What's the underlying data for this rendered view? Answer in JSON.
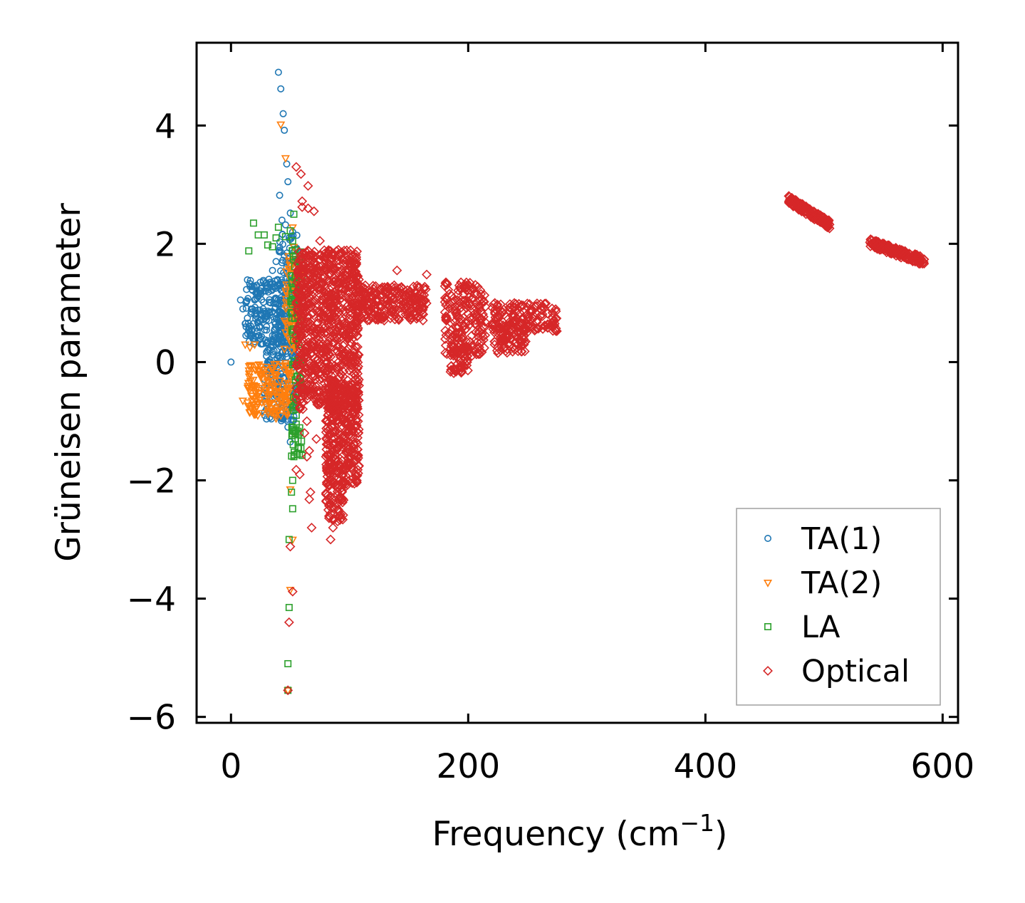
{
  "chart_data": {
    "type": "scatter",
    "title": "",
    "xlabel": "Frequency (cm",
    "xlabel_sup": "−1",
    "xlabel_close": ")",
    "ylabel": "Grüneisen parameter",
    "xlim": [
      -29,
      613
    ],
    "ylim": [
      -6.1,
      5.4
    ],
    "xticks": [
      0,
      200,
      400,
      600
    ],
    "xtick_labels": [
      "0",
      "200",
      "400",
      "600"
    ],
    "yticks": [
      -6,
      -4,
      -2,
      0,
      2,
      4
    ],
    "ytick_labels": [
      "−6",
      "−4",
      "−2",
      "0",
      "2",
      "4"
    ],
    "grid": false,
    "legend_position": "bottom-right",
    "series": [
      {
        "name": "TA(1)",
        "marker": "circle",
        "color": "#1f77b4",
        "points": [
          [
            0,
            0
          ],
          [
            40,
            4.9
          ],
          [
            42,
            4.62
          ],
          [
            44,
            4.2
          ],
          [
            45,
            3.92
          ],
          [
            47,
            3.35
          ],
          [
            48,
            3.05
          ],
          [
            41,
            2.82
          ],
          [
            50,
            2.52
          ],
          [
            43,
            2.4
          ],
          [
            46,
            2.32
          ],
          [
            38,
            1.7
          ],
          [
            35,
            1.55
          ],
          [
            32,
            1.4
          ],
          [
            30,
            1.3
          ],
          [
            28,
            1.2
          ],
          [
            25,
            1.15
          ],
          [
            22,
            1.08
          ],
          [
            20,
            1.05
          ],
          [
            8,
            1.05
          ],
          [
            10,
            0.9
          ],
          [
            12,
            0.65
          ],
          [
            15,
            0.6
          ],
          [
            18,
            0.55
          ],
          [
            20,
            0.8
          ],
          [
            24,
            0.7
          ],
          [
            27,
            0.9
          ],
          [
            30,
            0.6
          ],
          [
            33,
            0.2
          ],
          [
            35,
            0.45
          ],
          [
            38,
            0.3
          ],
          [
            40,
            0.1
          ],
          [
            42,
            -0.2
          ],
          [
            44,
            -0.5
          ],
          [
            46,
            -0.8
          ],
          [
            48,
            -1.1
          ],
          [
            50,
            -1.35
          ],
          [
            45,
            1.8
          ],
          [
            47,
            1.6
          ],
          [
            49,
            2.1
          ],
          [
            51,
            1.3
          ],
          [
            52,
            2.2
          ],
          [
            36,
            1.0
          ],
          [
            39,
            0.8
          ],
          [
            43,
            0.5
          ]
        ],
        "clusters": [
          {
            "x_range": [
              12,
              55
            ],
            "y_range": [
              0.3,
              1.4
            ],
            "count": 240
          },
          {
            "x_range": [
              28,
              55
            ],
            "y_range": [
              -1.0,
              0.5
            ],
            "count": 180
          },
          {
            "x_range": [
              40,
              56
            ],
            "y_range": [
              0.8,
              2.2
            ],
            "count": 60
          }
        ]
      },
      {
        "name": "TA(2)",
        "marker": "triangle-down",
        "color": "#ff7f0e",
        "points": [
          [
            42,
            4.02
          ],
          [
            46,
            3.45
          ],
          [
            52,
            2.28
          ],
          [
            53,
            1.95
          ],
          [
            10,
            -0.65
          ],
          [
            14,
            -0.68
          ],
          [
            18,
            -0.72
          ],
          [
            22,
            -0.75
          ],
          [
            26,
            -0.68
          ],
          [
            30,
            -0.75
          ],
          [
            34,
            -0.85
          ],
          [
            38,
            -0.95
          ],
          [
            42,
            -0.9
          ],
          [
            20,
            0.3
          ],
          [
            16,
            0.25
          ],
          [
            12,
            0.3
          ],
          [
            50,
            -2.15
          ],
          [
            52,
            -3.0
          ],
          [
            50,
            -3.85
          ],
          [
            48,
            -5.55
          ],
          [
            54,
            -1.2
          ],
          [
            52,
            0.7
          ],
          [
            55,
            0.4
          ]
        ],
        "clusters": [
          {
            "x_range": [
              14,
              52
            ],
            "y_range": [
              -0.9,
              0.0
            ],
            "count": 170
          },
          {
            "x_range": [
              45,
              58
            ],
            "y_range": [
              0.2,
              1.8
            ],
            "count": 90
          }
        ]
      },
      {
        "name": "LA",
        "marker": "square",
        "color": "#2ca02c",
        "points": [
          [
            19,
            2.35
          ],
          [
            23,
            2.15
          ],
          [
            28,
            2.15
          ],
          [
            31,
            1.98
          ],
          [
            15,
            1.88
          ],
          [
            35,
            1.95
          ],
          [
            38,
            2.1
          ],
          [
            40,
            2.28
          ],
          [
            46,
            2.12
          ],
          [
            50,
            2.22
          ],
          [
            53,
            2.5
          ],
          [
            52,
            2.05
          ],
          [
            54,
            1.9
          ],
          [
            56,
            1.5
          ],
          [
            57,
            1.2
          ],
          [
            56,
            0.95
          ],
          [
            58,
            0.6
          ],
          [
            57,
            0.3
          ],
          [
            58,
            -0.4
          ],
          [
            55,
            -0.9
          ],
          [
            54,
            -1.3
          ],
          [
            53,
            -1.6
          ],
          [
            52,
            -2.0
          ],
          [
            51,
            -2.2
          ],
          [
            52,
            -2.48
          ],
          [
            49,
            -3.0
          ],
          [
            49,
            -4.15
          ],
          [
            48,
            -5.1
          ],
          [
            48,
            -5.55
          ],
          [
            55,
            -1.05
          ],
          [
            56,
            1.7
          ]
        ],
        "clusters": [
          {
            "x_range": [
              50,
              60
            ],
            "y_range": [
              -1.6,
              1.9
            ],
            "count": 90
          }
        ]
      },
      {
        "name": "Optical",
        "marker": "diamond",
        "color": "#d62728",
        "points": [
          [
            55,
            3.3
          ],
          [
            59,
            3.18
          ],
          [
            65,
            2.98
          ],
          [
            60,
            2.62
          ],
          [
            65,
            2.6
          ],
          [
            70,
            2.55
          ],
          [
            60,
            2.72
          ],
          [
            75,
            2.05
          ],
          [
            82,
            1.85
          ],
          [
            140,
            1.55
          ],
          [
            165,
            1.48
          ],
          [
            60,
            -0.7
          ],
          [
            62,
            -1.2
          ],
          [
            64,
            -1.6
          ],
          [
            67,
            -2.2
          ],
          [
            66,
            -2.32
          ],
          [
            68,
            -2.8
          ],
          [
            50,
            -3.12
          ],
          [
            52,
            -3.88
          ],
          [
            49,
            -4.4
          ],
          [
            48,
            -5.55
          ],
          [
            84,
            -3.0
          ],
          [
            82,
            -2.5
          ],
          [
            86,
            -2.8
          ],
          [
            64,
            -1.0
          ],
          [
            66,
            -1.5
          ],
          [
            72,
            -1.3
          ],
          [
            80,
            -1.6
          ],
          [
            55,
            -1.82
          ],
          [
            58,
            -1.9
          ]
        ],
        "clusters": [
          {
            "x_range": [
              55,
              108
            ],
            "y_range": [
              -0.8,
              1.9
            ],
            "count": 900
          },
          {
            "x_range": [
              80,
              108
            ],
            "y_range": [
              -2.1,
              -0.4
            ],
            "count": 350
          },
          {
            "x_range": [
              80,
              95
            ],
            "y_range": [
              -2.7,
              -2.0
            ],
            "count": 60
          },
          {
            "x_range": [
              105,
              165
            ],
            "y_range": [
              0.7,
              1.3
            ],
            "count": 260
          },
          {
            "x_range": [
              180,
              215
            ],
            "y_range": [
              0.1,
              1.35
            ],
            "count": 200
          },
          {
            "x_range": [
              185,
              200
            ],
            "y_range": [
              -0.2,
              0.3
            ],
            "count": 60
          },
          {
            "x_range": [
              220,
              275
            ],
            "y_range": [
              0.5,
              1.0
            ],
            "count": 160
          },
          {
            "x_range": [
              222,
              250
            ],
            "y_range": [
              0.15,
              0.6
            ],
            "count": 80
          }
        ],
        "bands": [
          {
            "x_from": 470,
            "y_from": 2.75,
            "x_to": 505,
            "y_to": 2.32,
            "count": 160
          },
          {
            "x_from": 538,
            "y_from": 2.02,
            "x_to": 585,
            "y_to": 1.7,
            "count": 180
          }
        ]
      }
    ]
  }
}
